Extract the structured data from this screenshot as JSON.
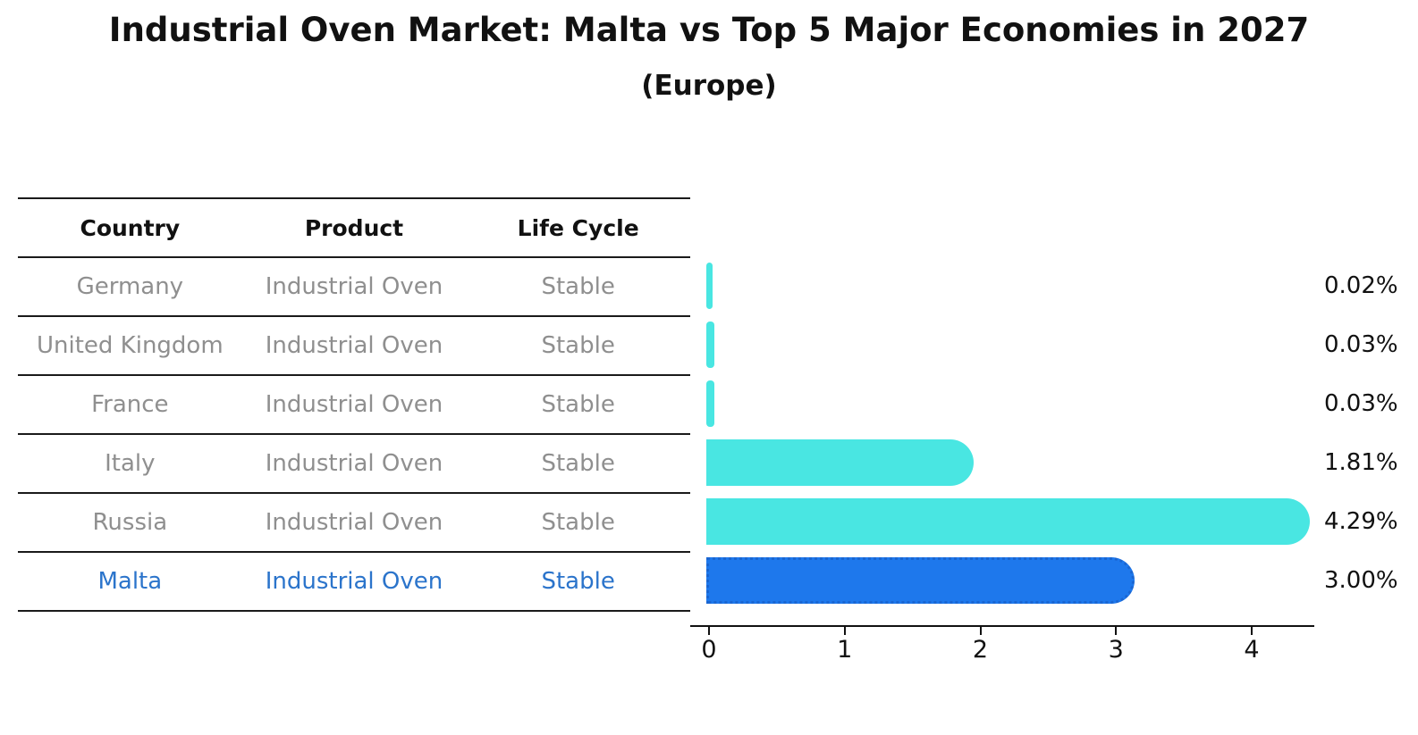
{
  "title": "Industrial Oven Market: Malta vs Top 5 Major Economies in 2027",
  "subtitle": "(Europe)",
  "table": {
    "headers": [
      "Country",
      "Product",
      "Life Cycle"
    ],
    "rows": [
      {
        "country": "Germany",
        "product": "Industrial Oven",
        "life_cycle": "Stable",
        "highlight": false
      },
      {
        "country": "United Kingdom",
        "product": "Industrial Oven",
        "life_cycle": "Stable",
        "highlight": false
      },
      {
        "country": "France",
        "product": "Industrial Oven",
        "life_cycle": "Stable",
        "highlight": false
      },
      {
        "country": "Italy",
        "product": "Industrial Oven",
        "life_cycle": "Stable",
        "highlight": false
      },
      {
        "country": "Russia",
        "product": "Industrial Oven",
        "life_cycle": "Stable",
        "highlight": false
      },
      {
        "country": "Malta",
        "product": "Industrial Oven",
        "life_cycle": "Stable",
        "highlight": true
      }
    ]
  },
  "chart_data": {
    "type": "bar",
    "orientation": "horizontal",
    "title": "Industrial Oven Market: Malta vs Top 5 Major Economies in 2027",
    "subtitle": "(Europe)",
    "categories": [
      "Germany",
      "United Kingdom",
      "France",
      "Italy",
      "Russia",
      "Malta"
    ],
    "values": [
      0.02,
      0.03,
      0.03,
      1.81,
      4.29,
      3.0
    ],
    "data_labels": [
      "0.02%",
      "0.03%",
      "0.03%",
      "1.81%",
      "4.29%",
      "3.00%"
    ],
    "x_ticks": [
      0,
      1,
      2,
      3,
      4
    ],
    "xlim": [
      0,
      4.46
    ],
    "grid": false,
    "legend": false,
    "highlight_index": 5,
    "unit": "%"
  },
  "colors": {
    "bar_fill": "#49e6e2",
    "highlight_fill": "#1e78ec",
    "highlight_border": "#1a66d2",
    "table_text": "#8f8f8f",
    "highlight_text": "#2b74cb",
    "axis": "#111111"
  }
}
